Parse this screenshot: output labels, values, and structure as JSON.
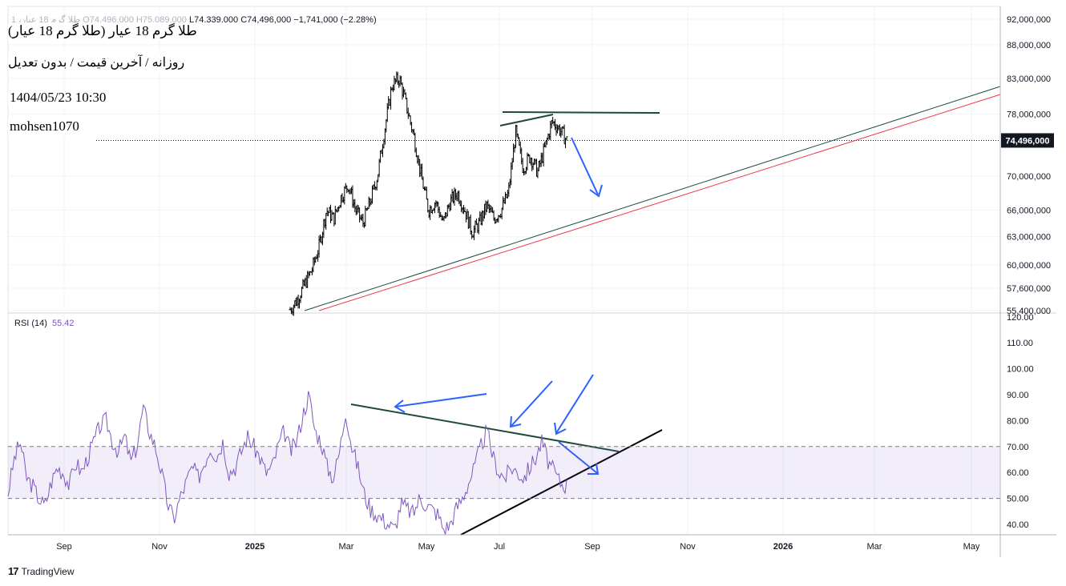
{
  "header": {
    "ohlc_prefix": "1 ،طلا گرم 18 عیار",
    "open": "O74,496,000",
    "high": "H75,089,000",
    "low": "L74,339,000",
    "close": "C74,496,000",
    "change": "−1,741,000 (−2.28%)"
  },
  "annotations": {
    "title": "طلا گرم 18 عیار (طلا گرم 18 عیار)",
    "subtitle": "روزانه / آخرین قیمت / بدون تعدیل",
    "datetime": "1404/05/23 10:30",
    "author": "mohsen1070"
  },
  "price_axis": {
    "ticks": [
      "92,000,000",
      "88,000,000",
      "83,000,000",
      "78,000,000",
      "70,000,000",
      "66,000,000",
      "63,000,000",
      "60,000,000",
      "57,600,000",
      "55,400,000"
    ],
    "tick_values": [
      92000000,
      88000000,
      83000000,
      78000000,
      70000000,
      66000000,
      63000000,
      60000000,
      57600000,
      55400000
    ],
    "last_price_label": "74,496,000",
    "last_price": 74496000
  },
  "rsi_panel": {
    "label": "RSI (14)",
    "value": "55.42",
    "ticks": [
      "120.00",
      "110.00",
      "100.00",
      "90.00",
      "80.00",
      "70.00",
      "60.00",
      "50.00",
      "40.00"
    ],
    "tick_values": [
      120,
      110,
      100,
      90,
      80,
      70,
      60,
      50,
      40
    ],
    "band_upper": 70,
    "band_middle": 50
  },
  "time_axis": {
    "labels": [
      "Sep",
      "Nov",
      "2025",
      "Mar",
      "May",
      "Jul",
      "Sep",
      "Nov",
      "2026",
      "Mar",
      "May"
    ],
    "bold": [
      false,
      false,
      true,
      false,
      false,
      false,
      false,
      false,
      true,
      false,
      false
    ]
  },
  "chart_data": {
    "type": "line",
    "title": "طلا گرم 18 عیار (طلا گرم 18 عیار)",
    "y_scale": "log",
    "ylim": [
      55400000,
      92000000
    ],
    "series": [
      {
        "name": "طلا گرم 18 عیار",
        "points": [
          [
            "Jan 2025",
            55500000
          ],
          [
            "Jan 2025",
            56500000
          ],
          [
            "Jan 2025",
            58000000
          ],
          [
            "Jan 2025",
            59500000
          ],
          [
            "Feb 2025",
            62000000
          ],
          [
            "Feb 2025",
            66000000
          ],
          [
            "Feb 2025",
            65000000
          ],
          [
            "Feb 2025",
            67500000
          ],
          [
            "Feb 2025",
            69000000
          ],
          [
            "Mar 2025",
            66000000
          ],
          [
            "Mar 2025",
            64500000
          ],
          [
            "Mar 2025",
            67000000
          ],
          [
            "Mar 2025",
            70000000
          ],
          [
            "Mar 2025",
            76000000
          ],
          [
            "Mar 2025",
            82000000
          ],
          [
            "Apr 2025",
            83000000
          ],
          [
            "Apr 2025",
            79000000
          ],
          [
            "Apr 2025",
            75000000
          ],
          [
            "Apr 2025",
            70000000
          ],
          [
            "Apr 2025",
            66000000
          ],
          [
            "Apr 2025",
            67000000
          ],
          [
            "May 2025",
            64500000
          ],
          [
            "May 2025",
            67000000
          ],
          [
            "May 2025",
            68000000
          ],
          [
            "May 2025",
            66000000
          ],
          [
            "May 2025",
            63500000
          ],
          [
            "Jun 2025",
            64500000
          ],
          [
            "Jun 2025",
            66500000
          ],
          [
            "Jun 2025",
            65000000
          ],
          [
            "Jun 2025",
            66000000
          ],
          [
            "Jun 2025",
            68000000
          ],
          [
            "Jul 2025",
            75500000
          ],
          [
            "Jul 2025",
            71000000
          ],
          [
            "Jul 2025",
            72500000
          ],
          [
            "Jul 2025",
            70500000
          ],
          [
            "Jul 2025",
            73500000
          ],
          [
            "Aug 2025",
            77000000
          ],
          [
            "Aug 2025",
            76000000
          ],
          [
            "Aug 2025",
            74496000
          ]
        ]
      }
    ],
    "rsi": {
      "name": "RSI (14)",
      "ylim": [
        35,
        122
      ],
      "values": [
        52,
        65,
        72,
        58,
        55,
        50,
        47,
        56,
        62,
        60,
        55,
        64,
        60,
        66,
        72,
        78,
        80,
        72,
        68,
        74,
        64,
        70,
        85,
        76,
        70,
        60,
        48,
        42,
        50,
        56,
        62,
        58,
        64,
        70,
        66,
        72,
        60,
        62,
        68,
        74,
        70,
        66,
        60,
        62,
        70,
        76,
        68,
        72,
        82,
        90,
        76,
        72,
        62,
        58,
        68,
        84,
        70,
        62,
        52,
        46,
        44,
        42,
        40,
        38,
        48,
        46,
        44,
        50,
        48,
        46,
        44,
        38,
        40,
        46,
        50,
        56,
        62,
        70,
        76,
        66,
        60,
        58,
        62,
        60,
        58,
        62,
        66,
        72,
        64,
        60,
        56,
        55
      ]
    }
  }
}
